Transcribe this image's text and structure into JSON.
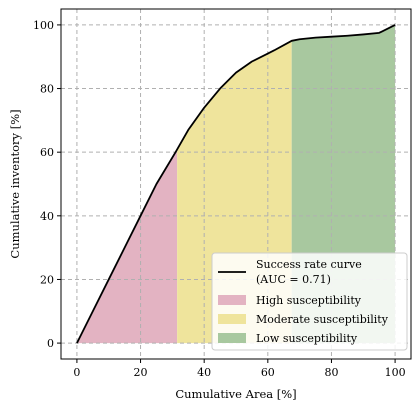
{
  "chart_data": {
    "type": "area",
    "xlabel": "Cumulative Area [%]",
    "ylabel": "Cumulative inventory [%]",
    "xlim": [
      -5,
      105
    ],
    "ylim": [
      -5,
      105
    ],
    "xticks": [
      0,
      20,
      40,
      60,
      80,
      100
    ],
    "yticks": [
      0,
      20,
      40,
      60,
      80,
      100
    ],
    "grid": true,
    "legend_placement": "bottom-right",
    "curve": {
      "name_line1": "Success rate curve",
      "name_line2": "(AUC = 0.71)",
      "color": "#000000",
      "x": [
        0,
        5,
        10,
        15,
        20,
        25,
        31,
        35,
        40,
        45,
        50,
        55,
        60,
        62,
        67.5,
        70,
        75,
        80,
        85,
        90,
        95,
        100
      ],
      "y": [
        0,
        10,
        20,
        30,
        40,
        50,
        60,
        67,
        74,
        80,
        85,
        88.5,
        91,
        92,
        95,
        95.5,
        96,
        96.3,
        96.6,
        97,
        97.5,
        100
      ]
    },
    "zones": [
      {
        "name": "High susceptibility",
        "x_start": 0,
        "x_end": 31.5,
        "color": "#e3b3c2"
      },
      {
        "name": "Moderate susceptibility",
        "x_start": 31.5,
        "x_end": 67.5,
        "color": "#efe49c"
      },
      {
        "name": "Low susceptibility",
        "x_start": 67.5,
        "x_end": 100,
        "color": "#a8c89f"
      }
    ]
  }
}
